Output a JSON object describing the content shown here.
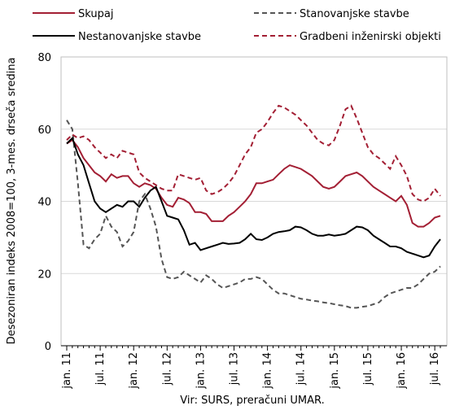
{
  "chart_data": {
    "type": "line",
    "y_label": "Desezoniran indeks 2008=100, 3-mes. drseča sredina",
    "source": "Vir: SURS, preračuni UMAR.",
    "categories": [
      "jan. 11",
      null,
      null,
      null,
      null,
      null,
      "jul. 11",
      null,
      null,
      null,
      null,
      null,
      "jan. 12",
      null,
      null,
      null,
      null,
      null,
      "jul. 12",
      null,
      null,
      null,
      null,
      null,
      "jan. 13",
      null,
      null,
      null,
      null,
      null,
      "jul. 13",
      null,
      null,
      null,
      null,
      null,
      "jan. 14",
      null,
      null,
      null,
      null,
      null,
      "jul. 14",
      null,
      null,
      null,
      null,
      null,
      "jan. 15",
      null,
      null,
      null,
      null,
      null,
      "jul. 15",
      null,
      null,
      null,
      null,
      null,
      "jan. 16",
      null,
      null,
      null,
      null,
      null,
      "jul. 16",
      null
    ],
    "ylim": [
      0,
      80
    ],
    "yticks": [
      0,
      20,
      40,
      60,
      80
    ],
    "grid": true,
    "series": [
      {
        "name": "Skupaj",
        "color": "#a31f34",
        "dashed": false,
        "values": [
          56,
          57,
          55,
          52,
          50,
          48,
          47,
          45.5,
          47.5,
          46.5,
          47,
          47,
          45,
          44,
          45,
          44.5,
          43.5,
          41,
          39,
          38.5,
          41,
          40.5,
          39.5,
          37,
          37,
          36.5,
          34.5,
          34.5,
          34.5,
          36,
          37,
          38.5,
          40,
          42,
          45,
          45,
          45.5,
          46,
          47.5,
          49,
          50,
          49.5,
          49,
          48,
          47,
          45.5,
          44,
          43.5,
          44,
          45.5,
          47,
          47.5,
          48,
          47,
          45.5,
          44,
          43,
          42,
          41,
          40,
          41.5,
          39,
          34,
          33,
          33,
          34,
          35.5,
          36
        ]
      },
      {
        "name": "Stanovanjske stavbe",
        "color": "#555555",
        "dashed": true,
        "values": [
          62.5,
          60,
          45,
          28,
          27,
          29.5,
          31,
          36,
          33,
          31.5,
          27.5,
          29,
          31.5,
          40,
          42,
          38,
          33,
          24,
          19,
          18.5,
          19,
          20.5,
          19.5,
          18.5,
          17.5,
          19.5,
          18.5,
          17,
          16,
          16.5,
          17,
          17.5,
          18.5,
          18.5,
          19,
          18.5,
          17,
          15.5,
          14.5,
          14.5,
          14,
          13.5,
          13,
          12.8,
          12.5,
          12.3,
          12,
          11.8,
          11.5,
          11.2,
          11,
          10.5,
          10.5,
          10.8,
          11,
          11.5,
          12,
          13.5,
          14.5,
          15,
          15.5,
          16,
          16,
          17,
          18.5,
          20,
          20.5,
          22
        ]
      },
      {
        "name": "Nestanovanjske stavbe",
        "color": "#000000",
        "dashed": false,
        "values": [
          56,
          57.5,
          53,
          50,
          45,
          40,
          38,
          37,
          38,
          39,
          38.5,
          40,
          40,
          38.5,
          41,
          43,
          44,
          40,
          36,
          35.5,
          35,
          32,
          28,
          28.5,
          26.5,
          27,
          27.5,
          28,
          28.5,
          28.2,
          28.3,
          28.5,
          29.5,
          31,
          29.5,
          29.3,
          30,
          31,
          31.5,
          31.7,
          32,
          33,
          32.8,
          32,
          31,
          30.5,
          30.5,
          30.8,
          30.5,
          30.7,
          31,
          32,
          33,
          32.8,
          32,
          30.5,
          29.5,
          28.5,
          27.5,
          27.5,
          27,
          26,
          25.5,
          25,
          24.5,
          25,
          27.5,
          29.5
        ]
      },
      {
        "name": "Gradbeni inženirski objekti",
        "color": "#a31f34",
        "dashed": true,
        "values": [
          57,
          58.5,
          57.5,
          58,
          57,
          55,
          53.5,
          52,
          53,
          52,
          54,
          53.5,
          53,
          48,
          46.5,
          45.5,
          44.5,
          43.5,
          43,
          43,
          47.5,
          47,
          46.5,
          46,
          46.5,
          43,
          42,
          42.5,
          43.5,
          45,
          47,
          50,
          53,
          55,
          59,
          60,
          62,
          64.5,
          66.5,
          66,
          65,
          64,
          62.5,
          61,
          59,
          57,
          56,
          55.5,
          57,
          61,
          65.5,
          66.5,
          63,
          59,
          55,
          53,
          52,
          50.5,
          49,
          52.5,
          50,
          47,
          42,
          40.5,
          40,
          41,
          43.5,
          41.5
        ]
      }
    ]
  }
}
